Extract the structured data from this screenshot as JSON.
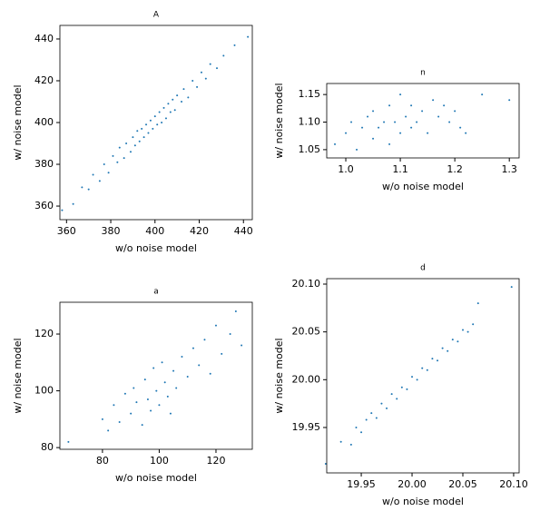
{
  "chart_data": [
    {
      "type": "scatter",
      "title": "A",
      "x_label": "w/o noise model",
      "y_label": "w/ noise model",
      "color": "#1f77b4",
      "x": [
        358,
        363,
        367,
        370,
        372,
        375,
        377,
        379,
        381,
        383,
        384,
        386,
        387,
        389,
        390,
        391,
        392,
        393,
        394,
        395,
        396,
        397,
        398,
        399,
        400,
        401,
        402,
        403,
        404,
        405,
        406,
        407,
        408,
        409,
        410,
        412,
        413,
        415,
        417,
        419,
        421,
        423,
        425,
        428,
        431,
        436,
        442
      ],
      "values": [
        358,
        361,
        369,
        368,
        375,
        372,
        380,
        376,
        384,
        381,
        388,
        383,
        390,
        386,
        393,
        389,
        396,
        391,
        397,
        393,
        399,
        395,
        401,
        397,
        403,
        399,
        405,
        400,
        407,
        402,
        409,
        405,
        411,
        406,
        413,
        410,
        416,
        412,
        420,
        417,
        424,
        421,
        428,
        426,
        432,
        437,
        441
      ],
      "xlim": [
        357,
        444
      ],
      "ylim": [
        353.5,
        446.5
      ],
      "xticks": [
        360,
        380,
        400,
        420,
        440
      ],
      "yticks": [
        360,
        380,
        400,
        420,
        440
      ]
    },
    {
      "type": "scatter",
      "title": "n",
      "x_label": "w/o noise model",
      "y_label": "w/ noise model",
      "color": "#1f77b4",
      "x": [
        0.98,
        1.0,
        1.01,
        1.02,
        1.03,
        1.04,
        1.05,
        1.05,
        1.06,
        1.07,
        1.08,
        1.08,
        1.09,
        1.1,
        1.1,
        1.11,
        1.12,
        1.12,
        1.13,
        1.14,
        1.15,
        1.16,
        1.17,
        1.18,
        1.19,
        1.2,
        1.21,
        1.22,
        1.25,
        1.3
      ],
      "values": [
        1.06,
        1.08,
        1.1,
        1.05,
        1.09,
        1.11,
        1.07,
        1.12,
        1.09,
        1.1,
        1.06,
        1.13,
        1.1,
        1.08,
        1.15,
        1.11,
        1.09,
        1.13,
        1.1,
        1.12,
        1.08,
        1.14,
        1.11,
        1.13,
        1.1,
        1.12,
        1.09,
        1.08,
        1.15,
        1.14
      ],
      "xlim": [
        0.965,
        1.318
      ],
      "ylim": [
        1.035,
        1.17
      ],
      "xticks": [
        {
          "value": 1,
          "label": "1.0"
        },
        1.1,
        1.2,
        1.3
      ],
      "yticks": [
        1.05,
        {
          "value": 1.1,
          "label": "1.10"
        },
        1.15
      ]
    },
    {
      "type": "scatter",
      "title": "a",
      "x_label": "w/o noise model",
      "y_label": "w/ noise model",
      "color": "#1f77b4",
      "x": [
        68,
        80,
        82,
        84,
        86,
        88,
        90,
        91,
        92,
        94,
        95,
        96,
        97,
        98,
        99,
        100,
        101,
        102,
        103,
        104,
        105,
        106,
        108,
        110,
        112,
        114,
        116,
        118,
        120,
        122,
        125,
        127,
        129
      ],
      "values": [
        82,
        90,
        86,
        95,
        89,
        99,
        92,
        101,
        96,
        88,
        104,
        97,
        93,
        108,
        100,
        95,
        110,
        103,
        98,
        92,
        107,
        101,
        112,
        105,
        115,
        109,
        118,
        106,
        123,
        113,
        120,
        128,
        116
      ],
      "xlim": [
        65,
        132.8
      ],
      "ylim": [
        79.4,
        131.2
      ],
      "xticks": [
        80,
        100,
        120
      ],
      "yticks": [
        80,
        100,
        120
      ]
    },
    {
      "type": "scatter",
      "title": "d",
      "x_label": "w/o noise model",
      "y_label": "w/ noise model",
      "color": "#1f77b4",
      "x": [
        19.915,
        19.93,
        19.94,
        19.945,
        19.95,
        19.955,
        19.96,
        19.965,
        19.97,
        19.975,
        19.98,
        19.985,
        19.99,
        19.995,
        20.0,
        20.005,
        20.01,
        20.015,
        20.02,
        20.025,
        20.03,
        20.035,
        20.04,
        20.045,
        20.05,
        20.055,
        20.06,
        20.065,
        20.098
      ],
      "values": [
        19.912,
        19.935,
        19.932,
        19.95,
        19.945,
        19.958,
        19.965,
        19.96,
        19.975,
        19.97,
        19.985,
        19.98,
        19.992,
        19.99,
        20.003,
        20.0,
        20.012,
        20.01,
        20.022,
        20.02,
        20.033,
        20.03,
        20.042,
        20.04,
        20.052,
        20.05,
        20.058,
        20.08,
        20.097
      ],
      "xlim": [
        19.916,
        20.1054
      ],
      "ylim": [
        19.9025,
        20.1057
      ],
      "xticks": [
        19.95,
        {
          "value": 20,
          "label": "20.00"
        },
        20.05,
        {
          "value": 20.1,
          "label": "20.10"
        }
      ],
      "yticks": [
        19.95,
        {
          "value": 20,
          "label": "20.00"
        },
        20.05,
        {
          "value": 20.1,
          "label": "20.10"
        }
      ]
    }
  ]
}
